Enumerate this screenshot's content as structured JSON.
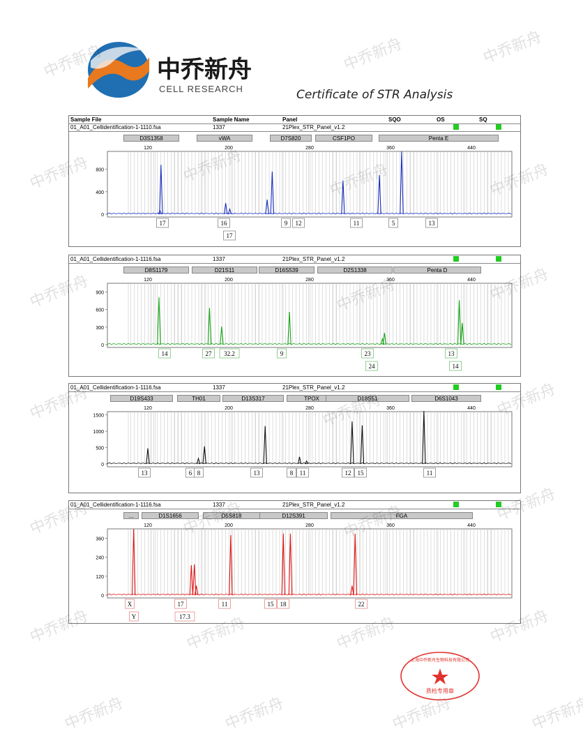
{
  "header": {
    "logo_cn": "中乔新舟",
    "logo_en": "CELL RESEARCH",
    "certificate_title": "Certificate of STR Analysis"
  },
  "table_columns": [
    "Sample File",
    "Sample Name",
    "Panel",
    "SQO",
    "OS",
    "SQ"
  ],
  "watermark_text": "中乔新舟",
  "colors": {
    "blue": "#1a2fbf",
    "green": "#15a315",
    "black": "#111111",
    "red": "#e01515",
    "status_ok": "#22cc22"
  },
  "panels": [
    {
      "sample_file": "01_A01_Cellidentification-1-1110.fsa",
      "sample_name": "1337",
      "panel": "21Plex_STR_Panel_v1.2",
      "color": "#1a2fbf",
      "markers": [
        "D3S1358",
        "vWA",
        "D7S820",
        "CSF1PO",
        "Penta E"
      ],
      "x_ticks": [
        "120",
        "200",
        "280",
        "360",
        "440"
      ],
      "y_ticks": [
        "800",
        "400",
        "0"
      ],
      "alleles": [
        {
          "labels": [
            "17"
          ]
        },
        {
          "labels": [
            "16",
            "17"
          ]
        },
        {
          "labels": [
            "9"
          ]
        },
        {
          "labels": [
            "12"
          ]
        },
        {
          "labels": [
            "11"
          ]
        },
        {
          "labels": [
            "5"
          ]
        },
        {
          "labels": [
            "13"
          ]
        }
      ]
    },
    {
      "sample_file": "01_A01_Cellidentification-1-1116.fsa",
      "sample_name": "1337",
      "panel": "21Plex_STR_Panel_v1.2",
      "color": "#15a315",
      "markers": [
        "D8S1179",
        "D21S11",
        "D16S539",
        "D2S1338",
        "Penta D"
      ],
      "x_ticks": [
        "120",
        "200",
        "280",
        "360",
        "440"
      ],
      "y_ticks": [
        "900",
        "600",
        "300",
        "0"
      ],
      "alleles": [
        {
          "labels": [
            "14"
          ]
        },
        {
          "labels": [
            "27"
          ]
        },
        {
          "labels": [
            "32.2"
          ]
        },
        {
          "labels": [
            "9"
          ]
        },
        {
          "labels": [
            "23",
            "24"
          ]
        },
        {
          "labels": [
            "13",
            "14"
          ]
        }
      ]
    },
    {
      "sample_file": "01_A01_Cellidentification-1-1116.fsa",
      "sample_name": "1337",
      "panel": "21Plex_STR_Panel_v1.2",
      "color": "#111111",
      "markers": [
        "D19S433",
        "TH01",
        "D13S317",
        "TPOX",
        "D18S51",
        "D6S1043"
      ],
      "x_ticks": [
        "120",
        "200",
        "280",
        "360",
        "440"
      ],
      "y_ticks": [
        "1500",
        "1000",
        "500",
        "0"
      ],
      "alleles": [
        {
          "labels": [
            "13"
          ]
        },
        {
          "labels": [
            "6"
          ]
        },
        {
          "labels": [
            "8"
          ]
        },
        {
          "labels": [
            "13"
          ]
        },
        {
          "labels": [
            "8"
          ]
        },
        {
          "labels": [
            "11"
          ]
        },
        {
          "labels": [
            "12"
          ]
        },
        {
          "labels": [
            "15"
          ]
        },
        {
          "labels": [
            "11"
          ]
        }
      ]
    },
    {
      "sample_file": "01_A01_Cellidentification-1-1116.fsa",
      "sample_name": "1337",
      "panel": "21Plex_STR_Panel_v1.2",
      "color": "#e01515",
      "markers": [
        "...",
        "D1S1656",
        "D5S818",
        "D12S391",
        "FGA"
      ],
      "x_ticks": [
        "120",
        "200",
        "280",
        "360",
        "440"
      ],
      "y_ticks": [
        "360",
        "240",
        "120",
        "0"
      ],
      "alleles": [
        {
          "labels": [
            "X",
            "Y"
          ]
        },
        {
          "labels": [
            "17",
            "17.3"
          ]
        },
        {
          "labels": [
            "11"
          ]
        },
        {
          "labels": [
            "15"
          ]
        },
        {
          "labels": [
            "18"
          ]
        },
        {
          "labels": [
            "22"
          ]
        }
      ]
    }
  ],
  "stamp": {
    "text": "上海中乔新舟生物科技有限公司",
    "label": "质检专用章"
  },
  "chart_data": [
    {
      "type": "line",
      "title": "",
      "xlabel": "",
      "ylabel": "",
      "xlim": [
        80,
        480
      ],
      "ylim": [
        0,
        1120
      ],
      "peaks": [
        {
          "x": 133,
          "y": 880
        },
        {
          "x": 132,
          "y": 60
        },
        {
          "x": 197,
          "y": 200
        },
        {
          "x": 201,
          "y": 90
        },
        {
          "x": 238,
          "y": 260
        },
        {
          "x": 243,
          "y": 760
        },
        {
          "x": 313,
          "y": 600
        },
        {
          "x": 349,
          "y": 700
        },
        {
          "x": 371,
          "y": 1120
        }
      ]
    },
    {
      "type": "line",
      "title": "",
      "xlabel": "",
      "ylabel": "",
      "xlim": [
        80,
        480
      ],
      "ylim": [
        0,
        1050
      ],
      "peaks": [
        {
          "x": 131,
          "y": 810
        },
        {
          "x": 181,
          "y": 630
        },
        {
          "x": 193,
          "y": 310
        },
        {
          "x": 260,
          "y": 560
        },
        {
          "x": 352,
          "y": 100
        },
        {
          "x": 354,
          "y": 200
        },
        {
          "x": 428,
          "y": 760
        },
        {
          "x": 431,
          "y": 370
        }
      ]
    },
    {
      "type": "line",
      "title": "",
      "xlabel": "",
      "ylabel": "",
      "xlim": [
        80,
        480
      ],
      "ylim": [
        0,
        1600
      ],
      "peaks": [
        {
          "x": 120,
          "y": 480
        },
        {
          "x": 170,
          "y": 170
        },
        {
          "x": 176,
          "y": 540
        },
        {
          "x": 236,
          "y": 1160
        },
        {
          "x": 270,
          "y": 220
        },
        {
          "x": 277,
          "y": 90
        },
        {
          "x": 322,
          "y": 1300
        },
        {
          "x": 332,
          "y": 1180
        },
        {
          "x": 393,
          "y": 1620
        }
      ]
    },
    {
      "type": "line",
      "title": "",
      "xlabel": "",
      "ylabel": "",
      "xlim": [
        80,
        480
      ],
      "ylim": [
        0,
        420
      ],
      "peaks": [
        {
          "x": 106,
          "y": 420
        },
        {
          "x": 163,
          "y": 190
        },
        {
          "x": 166,
          "y": 195
        },
        {
          "x": 168,
          "y": 60
        },
        {
          "x": 202,
          "y": 380
        },
        {
          "x": 254,
          "y": 390
        },
        {
          "x": 261,
          "y": 390
        },
        {
          "x": 325,
          "y": 390
        },
        {
          "x": 322,
          "y": 60
        }
      ]
    }
  ]
}
